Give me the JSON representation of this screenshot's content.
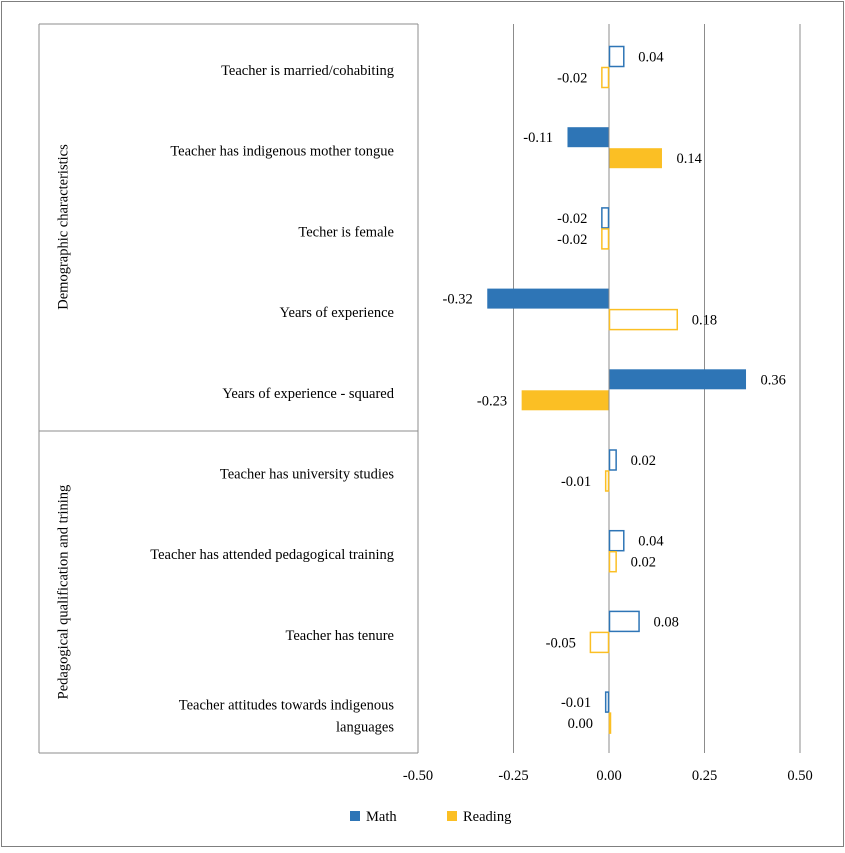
{
  "chart_data": {
    "type": "bar",
    "orientation": "horizontal",
    "groups": [
      {
        "label": "Demographic characteristics",
        "category_count": 5
      },
      {
        "label": "Pedagogical qualification and trining",
        "category_count": 4
      }
    ],
    "categories": [
      [
        "Teacher is married/cohabiting"
      ],
      [
        "Teacher has indigenous mother tongue"
      ],
      [
        "Techer is female"
      ],
      [
        "Years of experience"
      ],
      [
        "Years of experience - squared"
      ],
      [
        "Teacher has university studies"
      ],
      [
        "Teacher has attended pedagogical training"
      ],
      [
        "Teacher has tenure"
      ],
      [
        "Teacher attitudes towards indigenous",
        "languages"
      ]
    ],
    "series": [
      {
        "name": "Math",
        "color": "#2e75b6",
        "values": [
          0.04,
          -0.11,
          -0.02,
          -0.32,
          0.36,
          0.02,
          0.04,
          0.08,
          -0.01
        ],
        "labels": [
          "0.04",
          "-0.11",
          "-0.02",
          "-0.32",
          "0.36",
          "0.02",
          "0.04",
          "0.08",
          "-0.01"
        ],
        "filled": [
          false,
          true,
          false,
          true,
          true,
          false,
          false,
          false,
          false
        ]
      },
      {
        "name": "Reading",
        "color": "#fbbf24",
        "values": [
          -0.02,
          0.14,
          -0.02,
          0.18,
          -0.23,
          -0.01,
          0.02,
          -0.05,
          0.0
        ],
        "labels": [
          "-0.02",
          "0.14",
          "-0.02",
          "0.18",
          "-0.23",
          "-0.01",
          "0.02",
          "-0.05",
          "0.00"
        ],
        "filled": [
          false,
          true,
          false,
          false,
          true,
          false,
          false,
          false,
          false
        ]
      }
    ],
    "xlim": [
      -0.5,
      0.5
    ],
    "xticks": [
      -0.5,
      -0.25,
      0.0,
      0.25,
      0.5
    ],
    "xtick_labels": [
      "-0.50",
      "-0.25",
      "0.00",
      "0.25",
      "0.50"
    ],
    "grid": "vertical",
    "legend_position": "bottom"
  }
}
